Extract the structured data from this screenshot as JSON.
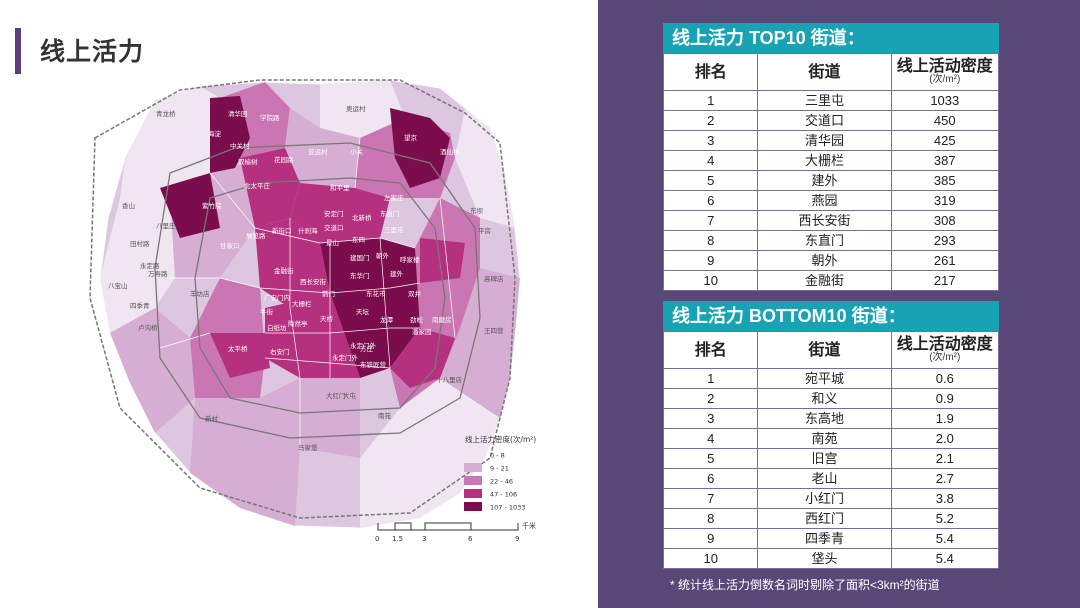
{
  "title": "线上活力",
  "top_table": {
    "header_prefix": "线上活力 ",
    "header_highlight": "TOP10",
    "header_suffix": " 街道：",
    "col_rank": "排名",
    "col_street": "街道",
    "col_density": "线上活动密度",
    "col_density_unit": "(次/m²)",
    "rows": [
      {
        "rank": "1",
        "street": "三里屯",
        "value": "1033"
      },
      {
        "rank": "2",
        "street": "交道口",
        "value": "450"
      },
      {
        "rank": "3",
        "street": "清华园",
        "value": "425"
      },
      {
        "rank": "4",
        "street": "大栅栏",
        "value": "387"
      },
      {
        "rank": "5",
        "street": "建外",
        "value": "385"
      },
      {
        "rank": "6",
        "street": "燕园",
        "value": "319"
      },
      {
        "rank": "7",
        "street": "西长安街",
        "value": "308"
      },
      {
        "rank": "8",
        "street": "东直门",
        "value": "293"
      },
      {
        "rank": "9",
        "street": "朝外",
        "value": "261"
      },
      {
        "rank": "10",
        "street": "金融街",
        "value": "217"
      }
    ]
  },
  "bottom_table": {
    "header_prefix": "线上活力 ",
    "header_highlight": "BOTTOM10",
    "header_suffix": " 街道：",
    "col_rank": "排名",
    "col_street": "街道",
    "col_density": "线上活动密度",
    "col_density_unit": "(次/m²)",
    "rows": [
      {
        "rank": "1",
        "street": "宛平城",
        "value": "0.6"
      },
      {
        "rank": "2",
        "street": "和义",
        "value": "0.9"
      },
      {
        "rank": "3",
        "street": "东高地",
        "value": "1.9"
      },
      {
        "rank": "4",
        "street": "南苑",
        "value": "2.0"
      },
      {
        "rank": "5",
        "street": "旧宫",
        "value": "2.1"
      },
      {
        "rank": "6",
        "street": "老山",
        "value": "2.7"
      },
      {
        "rank": "7",
        "street": "小红门",
        "value": "3.8"
      },
      {
        "rank": "8",
        "street": "西红门",
        "value": "5.2"
      },
      {
        "rank": "9",
        "street": "四季青",
        "value": "5.4"
      },
      {
        "rank": "10",
        "street": "垡头",
        "value": "5.4"
      }
    ]
  },
  "footnote": "* 统计线上活力倒数名词时剔除了面积<3km²的街道",
  "legend": {
    "title": "线上活力密度(次/m²)",
    "items": [
      {
        "label": "0 - 8",
        "color": "#efe6f1"
      },
      {
        "label": "9 - 21",
        "color": "#d7aed3"
      },
      {
        "label": "22 - 46",
        "color": "#c976b3"
      },
      {
        "label": "47 - 106",
        "color": "#b5317f"
      },
      {
        "label": "107 - 1033",
        "color": "#7b0d4d"
      }
    ]
  },
  "scale": {
    "ticks": [
      "0",
      "1.5",
      "3",
      "6",
      "9"
    ],
    "unit": "千米"
  },
  "map_labels": [
    {
      "text": "海淀",
      "dark": false
    },
    {
      "text": "清华园",
      "dark": false
    },
    {
      "text": "学院路",
      "dark": false
    },
    {
      "text": "中关村",
      "dark": false
    },
    {
      "text": "双榆树",
      "dark": false
    },
    {
      "text": "亚运村",
      "dark": false
    },
    {
      "text": "小关",
      "dark": false
    },
    {
      "text": "望京",
      "dark": false
    },
    {
      "text": "酒仙桥",
      "dark": false
    },
    {
      "text": "花园路",
      "dark": false
    },
    {
      "text": "紫竹院",
      "dark": false
    },
    {
      "text": "北太平庄",
      "dark": false
    },
    {
      "text": "和平里",
      "dark": false
    },
    {
      "text": "左家庄",
      "dark": false
    },
    {
      "text": "新街口",
      "dark": false
    },
    {
      "text": "什刹海",
      "dark": false
    },
    {
      "text": "安定门",
      "dark": false
    },
    {
      "text": "交道口",
      "dark": false
    },
    {
      "text": "北新桥",
      "dark": false
    },
    {
      "text": "东直门",
      "dark": false
    },
    {
      "text": "三里屯",
      "dark": false
    },
    {
      "text": "甘家口",
      "dark": false
    },
    {
      "text": "展览路",
      "dark": false
    },
    {
      "text": "景山",
      "dark": false
    },
    {
      "text": "东四",
      "dark": false
    },
    {
      "text": "朝外",
      "dark": false
    },
    {
      "text": "金融街",
      "dark": false
    },
    {
      "text": "西长安街",
      "dark": false
    },
    {
      "text": "东华门",
      "dark": false
    },
    {
      "text": "建国门",
      "dark": false
    },
    {
      "text": "建外",
      "dark": false
    },
    {
      "text": "呼家楼",
      "dark": false
    },
    {
      "text": "广安门内",
      "dark": false
    },
    {
      "text": "大栅栏",
      "dark": false
    },
    {
      "text": "前门",
      "dark": false
    },
    {
      "text": "东花市",
      "dark": false
    },
    {
      "text": "双井",
      "dark": false
    },
    {
      "text": "牛街",
      "dark": false
    },
    {
      "text": "天桥",
      "dark": false
    },
    {
      "text": "劲松",
      "dark": false
    },
    {
      "text": "白纸坊",
      "dark": false
    },
    {
      "text": "陶然亭",
      "dark": false
    },
    {
      "text": "天坛",
      "dark": false
    },
    {
      "text": "龙潭",
      "dark": false
    },
    {
      "text": "潘家园",
      "dark": false
    },
    {
      "text": "南磨房",
      "dark": false
    },
    {
      "text": "太平桥",
      "dark": false
    },
    {
      "text": "右安门",
      "dark": false
    },
    {
      "text": "永定门外",
      "dark": false
    },
    {
      "text": "方庄",
      "dark": false
    },
    {
      "text": "东铁匠营",
      "dark": false
    },
    {
      "text": "十八里店",
      "dark": true
    },
    {
      "text": "大红门",
      "dark": true
    },
    {
      "text": "南苑",
      "dark": true
    },
    {
      "text": "卢沟桥",
      "dark": true
    },
    {
      "text": "八宝山",
      "dark": true
    },
    {
      "text": "永定路",
      "dark": true
    },
    {
      "text": "田村路",
      "dark": true
    },
    {
      "text": "八里庄",
      "dark": true
    },
    {
      "text": "万寿路",
      "dark": true
    },
    {
      "text": "羊坊店",
      "dark": true
    },
    {
      "text": "东坝",
      "dark": true
    },
    {
      "text": "平房",
      "dark": true
    },
    {
      "text": "高碑店",
      "dark": true
    },
    {
      "text": "王四营",
      "dark": true
    },
    {
      "text": "新村",
      "dark": true
    },
    {
      "text": "马家堡",
      "dark": true
    },
    {
      "text": "大屯",
      "dark": true
    },
    {
      "text": "奥运村",
      "dark": true
    },
    {
      "text": "青龙桥",
      "dark": true
    },
    {
      "text": "香山",
      "dark": true
    },
    {
      "text": "四季青",
      "dark": true
    },
    {
      "text": "永定门外",
      "dark": false
    }
  ]
}
